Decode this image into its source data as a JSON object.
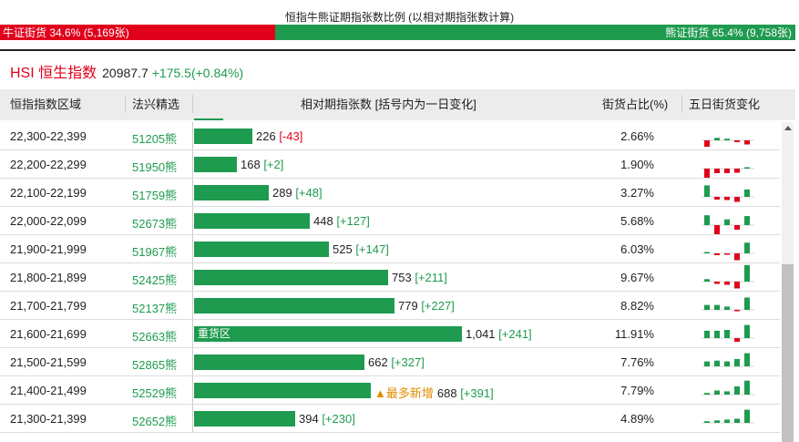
{
  "title": "恒指牛熊证期指张数比例 (以相对期指张数计算)",
  "ratio": {
    "bull_label": "牛证街货 34.6% (5,169张)",
    "bear_label": "熊证街货 65.4% (9,758张)",
    "bull_fraction": 0.346,
    "bull_color": "#e0001b",
    "bear_color": "#1e9b4f"
  },
  "index": {
    "name": "HSI 恒生指数",
    "value": "20987.7",
    "change": "+175.5(+0.84%)"
  },
  "columns": [
    "恒指指数区域",
    "法兴精选",
    "相对期指张数 [括号内为一日变化]",
    "街货占比(%)",
    "五日街货变化"
  ],
  "rows": [
    {
      "zone": "22,300-22,399",
      "pick": "51205熊",
      "count": "226",
      "delta": "-43",
      "pct": "2.66%",
      "value": 226,
      "label": "",
      "tag": "",
      "five": [
        -0.7,
        0.15,
        0.1,
        -0.2,
        -0.45
      ]
    },
    {
      "zone": "22,200-22,299",
      "pick": "51950熊",
      "count": "168",
      "delta": "+2",
      "pct": "1.90%",
      "value": 168,
      "label": "",
      "tag": "",
      "five": [
        -1,
        -0.5,
        -0.5,
        -0.45,
        0.05
      ]
    },
    {
      "zone": "22,100-22,199",
      "pick": "51759熊",
      "count": "289",
      "delta": "+48",
      "pct": "3.27%",
      "value": 289,
      "label": "",
      "tag": "",
      "five": [
        0.7,
        -0.3,
        -0.35,
        -0.55,
        0.45
      ]
    },
    {
      "zone": "22,000-22,099",
      "pick": "52673熊",
      "count": "448",
      "delta": "+127",
      "pct": "5.68%",
      "value": 448,
      "label": "",
      "tag": "",
      "five": [
        0.6,
        -1,
        0.35,
        -0.5,
        0.55
      ]
    },
    {
      "zone": "21,900-21,999",
      "pick": "51967熊",
      "count": "525",
      "delta": "+147",
      "pct": "6.03%",
      "value": 525,
      "label": "",
      "tag": "",
      "five": [
        0.05,
        -0.2,
        -0.15,
        -0.75,
        0.65
      ]
    },
    {
      "zone": "21,800-21,899",
      "pick": "52425熊",
      "count": "753",
      "delta": "+211",
      "pct": "9.67%",
      "value": 753,
      "label": "",
      "tag": "",
      "five": [
        0.15,
        -0.25,
        -0.35,
        -0.75,
        1
      ]
    },
    {
      "zone": "21,700-21,799",
      "pick": "52137熊",
      "count": "779",
      "delta": "+227",
      "pct": "8.82%",
      "value": 779,
      "label": "",
      "tag": "",
      "five": [
        0.3,
        0.3,
        0.2,
        -0.15,
        0.75
      ]
    },
    {
      "zone": "21,600-21,699",
      "pick": "52663熊",
      "count": "1,041",
      "delta": "+241",
      "pct": "11.91%",
      "value": 1041,
      "label": "重货区",
      "tag": "",
      "five": [
        0.45,
        0.45,
        0.5,
        -0.4,
        0.8
      ]
    },
    {
      "zone": "21,500-21,599",
      "pick": "52865熊",
      "count": "662",
      "delta": "+327",
      "pct": "7.76%",
      "value": 662,
      "label": "",
      "tag": "",
      "five": [
        0.3,
        0.35,
        0.3,
        0.45,
        0.8
      ]
    },
    {
      "zone": "21,400-21,499",
      "pick": "52529熊",
      "count": "688",
      "delta": "+391",
      "pct": "7.79%",
      "value": 688,
      "label": "",
      "tag": "▲最多新增",
      "five": [
        0.1,
        0.25,
        0.2,
        0.5,
        0.85
      ]
    },
    {
      "zone": "21,300-21,399",
      "pick": "52652熊",
      "count": "394",
      "delta": "+230",
      "pct": "4.89%",
      "value": 394,
      "label": "",
      "tag": "",
      "five": [
        0.1,
        0.15,
        0.2,
        0.25,
        0.8
      ]
    }
  ],
  "max_value": 1041
}
